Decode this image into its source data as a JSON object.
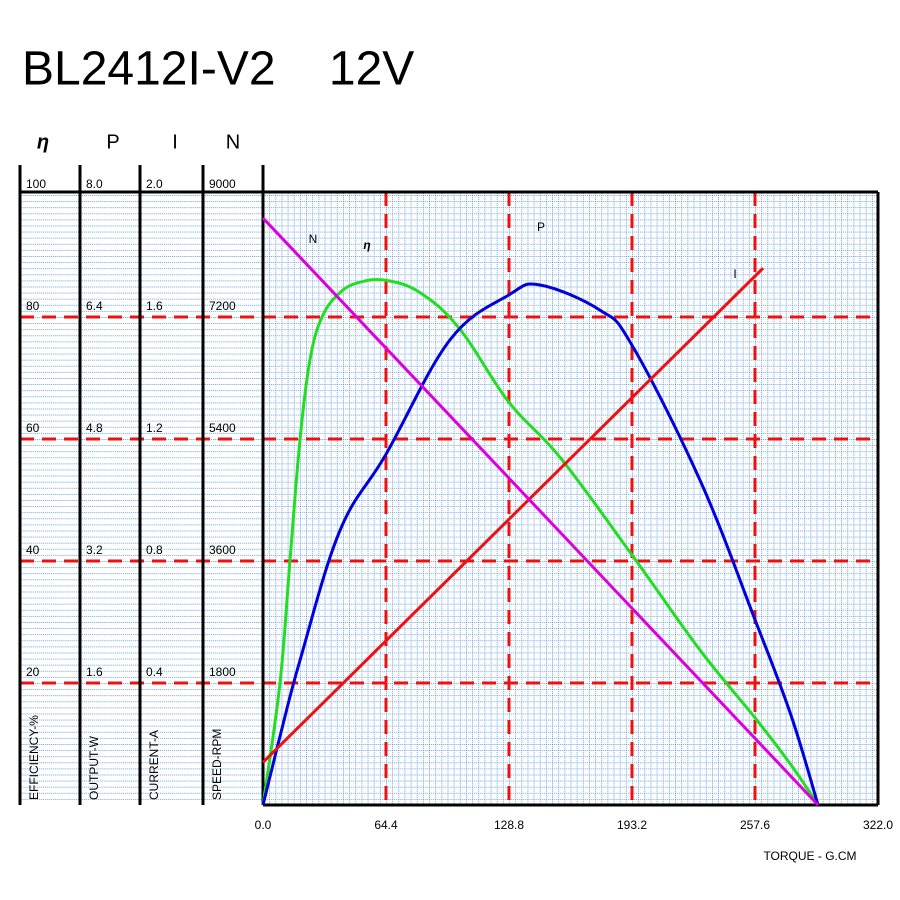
{
  "chart_data": {
    "type": "line",
    "title": "BL2412I-V2    12V",
    "x_label": "TORQUE - G.CM",
    "xlim": [
      0,
      322
    ],
    "xticks": [
      {
        "value": 0,
        "label": "0.0"
      },
      64.4,
      128.8,
      193.2,
      257.6,
      {
        "value": 322,
        "label": "322.0"
      }
    ],
    "grid": true,
    "series": [
      {
        "name": "η",
        "color": "#22dd22",
        "axis_label": "EFFICIENCY-%",
        "ylim": [
          0,
          100
        ],
        "yticks": [
          20,
          40,
          60,
          80,
          100
        ],
        "x": [
          0,
          8.9,
          14.1,
          19.4,
          24.6,
          30.9,
          40.3,
          50.8,
          64.4,
          82.2,
          103.1,
          128.8,
          155.5,
          193.2,
          228.8,
          257.6,
          276.4,
          290.6
        ],
        "values": [
          0,
          20,
          40,
          60,
          73,
          80,
          84,
          85.7,
          86,
          84,
          78,
          66,
          57,
          41,
          25.4,
          14.3,
          6.6,
          0
        ]
      },
      {
        "name": "P",
        "color": "#0000dd",
        "axis_label": "OUTPUT-W",
        "ylim": [
          0,
          8
        ],
        "yticks": [
          1.6,
          3.2,
          4.8,
          6.4,
          {
            "value": 8,
            "label": "8.0"
          }
        ],
        "x": [
          0,
          8.9,
          19.4,
          40.3,
          64.4,
          97.9,
          128.8,
          145,
          176.4,
          193.2,
          228.8,
          257.6,
          276.4,
          290.6
        ],
        "values": [
          0,
          0.9,
          1.9,
          3.6,
          4.6,
          6.1,
          6.69,
          6.82,
          6.49,
          6.03,
          4.26,
          2.43,
          1.18,
          0
        ]
      },
      {
        "name": "I",
        "color": "#ee1111",
        "axis_label": "CURRENT-A",
        "ylim": [
          0,
          2
        ],
        "yticks": [
          0.4,
          0.8,
          1.2,
          1.6,
          {
            "value": 2,
            "label": "2.0"
          }
        ],
        "x": [
          0,
          261.8
        ],
        "values": [
          0.14,
          1.76
        ]
      },
      {
        "name": "N",
        "color": "#dd00dd",
        "axis_label": "SPEED-RPM",
        "ylim": [
          0,
          9000
        ],
        "yticks": [
          1800,
          3600,
          5400,
          7200,
          9000
        ],
        "x": [
          0,
          290.6
        ],
        "values": [
          8660,
          0
        ]
      }
    ]
  }
}
